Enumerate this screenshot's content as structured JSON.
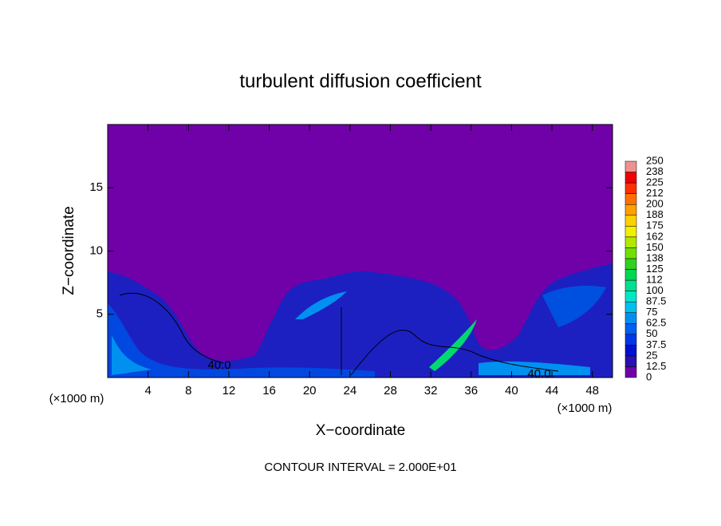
{
  "chart_data": {
    "type": "contour",
    "title": "turbulent diffusion coefficient",
    "x_label": "X−coordinate",
    "y_label": "Z−coordinate",
    "x_unit_label": "(×1000 m)",
    "y_unit_label": "(×1000 m)",
    "footer": "CONTOUR INTERVAL = 2.000E+01",
    "contour_labels": [
      "40.0",
      "40.0"
    ],
    "xlim": [
      0,
      50
    ],
    "xticks": [
      4,
      8,
      12,
      16,
      20,
      24,
      28,
      32,
      36,
      40,
      44,
      48
    ],
    "ylim": [
      0,
      20
    ],
    "yticks": [
      5,
      10,
      15
    ],
    "colorbar": {
      "levels": [
        0,
        12.5,
        25,
        37.5,
        50,
        62.5,
        75,
        87.5,
        100,
        112,
        125,
        138,
        150,
        162,
        175,
        188,
        200,
        212,
        225,
        238,
        250
      ],
      "colors": [
        "#7000a8",
        "#2a10b0",
        "#0010d0",
        "#0038e8",
        "#0060f0",
        "#0090f0",
        "#00c0f0",
        "#00e8c8",
        "#00e090",
        "#00d850",
        "#30d020",
        "#70e000",
        "#b0e800",
        "#f0f000",
        "#ffd000",
        "#ffa000",
        "#ff7000",
        "#ff3000",
        "#f00000",
        "#f09090"
      ]
    }
  }
}
